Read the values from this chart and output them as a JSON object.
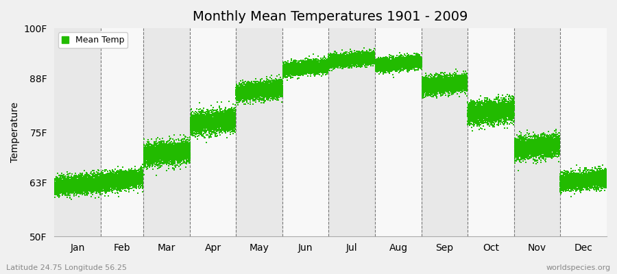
{
  "title": "Monthly Mean Temperatures 1901 - 2009",
  "ylabel": "Temperature",
  "background_color": "#f0f0f0",
  "plot_bg_color": "#f0f0f0",
  "band_color_odd": "#e8e8e8",
  "band_color_even": "#f8f8f8",
  "dot_color": "#22bb00",
  "dot_size": 3,
  "yticks": [
    50,
    63,
    75,
    88,
    100
  ],
  "ytick_labels": [
    "50F",
    "63F",
    "75F",
    "88F",
    "100F"
  ],
  "ylim": [
    50,
    100
  ],
  "months": [
    "Jan",
    "Feb",
    "Mar",
    "Apr",
    "May",
    "Jun",
    "Jul",
    "Aug",
    "Sep",
    "Oct",
    "Nov",
    "Dec"
  ],
  "subtitle_left": "Latitude 24.75 Longitude 56.25",
  "subtitle_right": "worldspecies.org",
  "legend_label": "Mean Temp",
  "monthly_means": [
    62.5,
    63.5,
    70.0,
    77.5,
    85.0,
    90.5,
    92.5,
    91.5,
    86.5,
    80.0,
    71.5,
    63.5
  ],
  "monthly_stds": [
    2.0,
    2.0,
    2.5,
    2.5,
    2.0,
    1.5,
    1.5,
    1.5,
    2.0,
    2.5,
    2.5,
    2.0
  ],
  "monthly_mins_abs": [
    56,
    57,
    63,
    72,
    80,
    87,
    88,
    87,
    82,
    74,
    65,
    57
  ],
  "monthly_maxs_abs": [
    67,
    69,
    76,
    83,
    90,
    94,
    96,
    96,
    91,
    86,
    77,
    69
  ],
  "n_years": 109,
  "days_per_month": [
    31,
    28,
    31,
    30,
    31,
    30,
    31,
    31,
    30,
    31,
    30,
    31
  ]
}
